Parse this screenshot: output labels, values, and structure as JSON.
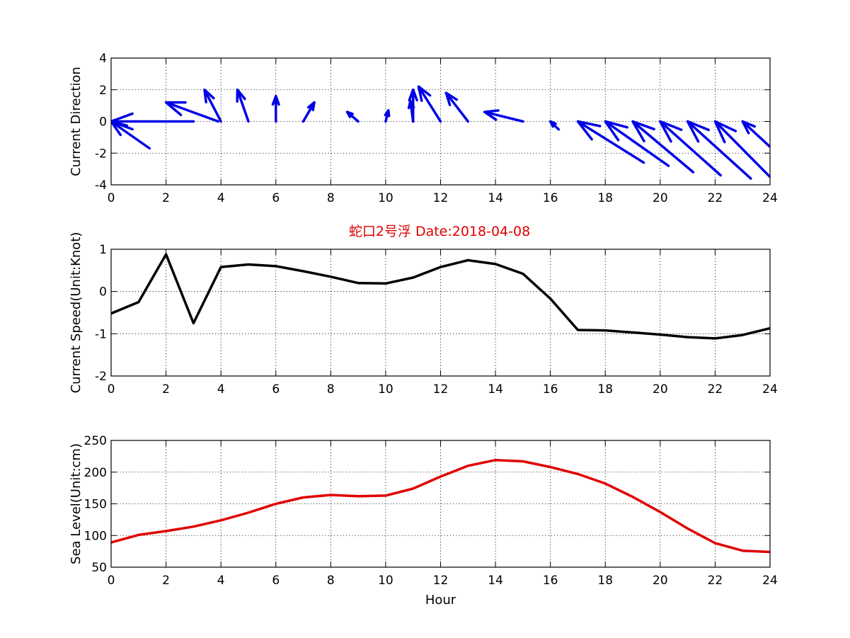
{
  "figure_title": "蛇口2号浮   Date:2018-04-08",
  "title_color": "#e00000",
  "chart_data": [
    {
      "type": "quiver",
      "ylabel": "Current Direction",
      "xlabel": "",
      "xlim": [
        0,
        24
      ],
      "ylim": [
        -4,
        4
      ],
      "xticks": [
        "0",
        "2",
        "4",
        "6",
        "8",
        "10",
        "12",
        "14",
        "16",
        "18",
        "20",
        "22",
        "24"
      ],
      "yticks": [
        "-4",
        "-2",
        "0",
        "2",
        "4"
      ],
      "grid": true,
      "color": "#0000e6",
      "vectors": [
        {
          "x": 0,
          "y": 0,
          "dx": 3.0,
          "dy": 0.0
        },
        {
          "x": 0,
          "y": 0,
          "dx": 1.4,
          "dy": -1.7
        },
        {
          "x": 2,
          "y": 1.2,
          "dx": 1.9,
          "dy": -1.2
        },
        {
          "x": 3.4,
          "y": 2.0,
          "dx": 0.6,
          "dy": -2.0
        },
        {
          "x": 4.6,
          "y": 2.0,
          "dx": 0.4,
          "dy": -2.0
        },
        {
          "x": 6.0,
          "y": 1.6,
          "dx": 0.0,
          "dy": -1.6
        },
        {
          "x": 7.4,
          "y": 1.2,
          "dx": -0.4,
          "dy": -1.2
        },
        {
          "x": 8.6,
          "y": 0.6,
          "dx": 0.4,
          "dy": -0.6
        },
        {
          "x": 10.1,
          "y": 0.7,
          "dx": -0.1,
          "dy": -0.7
        },
        {
          "x": 10.9,
          "y": 1.3,
          "dx": 0.1,
          "dy": -1.3
        },
        {
          "x": 11.0,
          "y": 2.0,
          "dx": 0.0,
          "dy": -2.0
        },
        {
          "x": 11.2,
          "y": 2.2,
          "dx": 0.8,
          "dy": -2.2
        },
        {
          "x": 12.2,
          "y": 1.8,
          "dx": 0.8,
          "dy": -1.8
        },
        {
          "x": 13.6,
          "y": 0.6,
          "dx": 1.4,
          "dy": -0.6
        },
        {
          "x": 16.0,
          "y": 0.0,
          "dx": 0.3,
          "dy": -0.5
        },
        {
          "x": 17.0,
          "y": 0.0,
          "dx": 2.4,
          "dy": -2.6
        },
        {
          "x": 18.0,
          "y": 0.0,
          "dx": 2.3,
          "dy": -2.8
        },
        {
          "x": 19.0,
          "y": 0.0,
          "dx": 2.2,
          "dy": -3.2
        },
        {
          "x": 20.0,
          "y": 0.0,
          "dx": 2.2,
          "dy": -3.4
        },
        {
          "x": 21.0,
          "y": 0.0,
          "dx": 2.3,
          "dy": -3.6
        },
        {
          "x": 22.0,
          "y": 0.0,
          "dx": 2.0,
          "dy": -3.5
        },
        {
          "x": 23.0,
          "y": 0.0,
          "dx": 1.0,
          "dy": -1.6
        }
      ]
    },
    {
      "type": "line",
      "ylabel": "Current Speed(Unit:Knot)",
      "xlabel": "",
      "xlim": [
        0,
        24
      ],
      "ylim": [
        -2,
        1
      ],
      "xticks": [
        "0",
        "2",
        "4",
        "6",
        "8",
        "10",
        "12",
        "14",
        "16",
        "18",
        "20",
        "22",
        "24"
      ],
      "yticks": [
        "-2",
        "-1",
        "0",
        "1"
      ],
      "grid": true,
      "color": "#000000",
      "x": [
        0,
        1,
        2,
        3,
        4,
        5,
        6,
        7,
        8,
        9,
        10,
        11,
        12,
        13,
        14,
        15,
        16,
        17,
        18,
        19,
        20,
        21,
        22,
        23,
        24
      ],
      "y": [
        -0.52,
        -0.25,
        0.88,
        -0.75,
        0.58,
        0.64,
        0.6,
        0.48,
        0.35,
        0.2,
        0.19,
        0.33,
        0.58,
        0.74,
        0.65,
        0.42,
        -0.17,
        -0.91,
        -0.92,
        -0.97,
        -1.02,
        -1.08,
        -1.11,
        -1.03,
        -0.87
      ]
    },
    {
      "type": "line",
      "ylabel": "Sea Level(Unit:cm)",
      "xlabel": "Hour",
      "xlim": [
        0,
        24
      ],
      "ylim": [
        50,
        250
      ],
      "xticks": [
        "0",
        "2",
        "4",
        "6",
        "8",
        "10",
        "12",
        "14",
        "16",
        "18",
        "20",
        "22",
        "24"
      ],
      "yticks": [
        "50",
        "100",
        "150",
        "200",
        "250"
      ],
      "grid": true,
      "color": "#e00000",
      "x": [
        0,
        1,
        2,
        3,
        4,
        5,
        6,
        7,
        8,
        9,
        10,
        11,
        12,
        13,
        14,
        15,
        16,
        17,
        18,
        19,
        20,
        21,
        22,
        23,
        24
      ],
      "y": [
        89,
        101,
        107,
        114,
        124,
        136,
        150,
        160,
        164,
        162,
        163,
        174,
        193,
        210,
        219,
        217,
        208,
        197,
        182,
        161,
        137,
        111,
        88,
        76,
        74
      ]
    }
  ]
}
